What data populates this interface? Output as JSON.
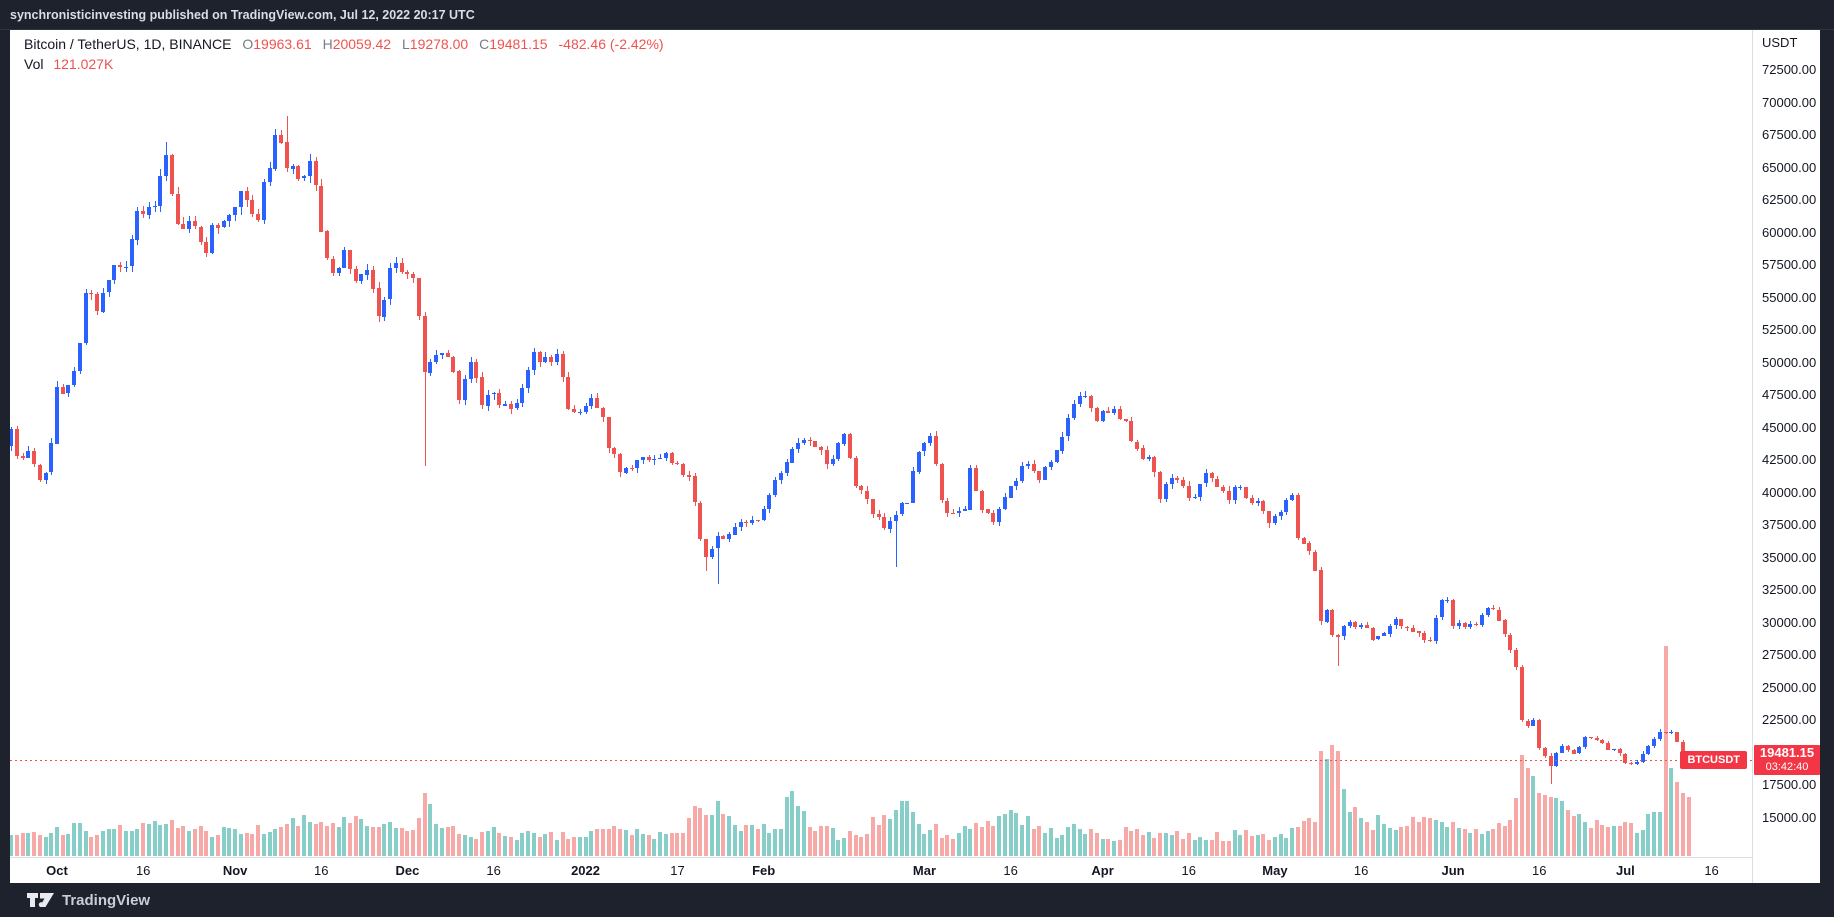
{
  "banner": {
    "text": "synchronisticinvesting published on TradingView.com, Jul 12, 2022 20:17 UTC"
  },
  "legend": {
    "title": "Bitcoin / TetherUS, 1D, BINANCE",
    "o_key": "O",
    "o_val": "19963.61",
    "h_key": "H",
    "h_val": "20059.42",
    "l_key": "L",
    "l_val": "19278.00",
    "c_key": "C",
    "c_val": "19481.15",
    "change": "-482.46 (-2.42%)",
    "vol_key": "Vol",
    "vol_val": "121.027K"
  },
  "price_scale": {
    "currency": "USDT",
    "min": 15000,
    "max": 72500,
    "step": 2500,
    "ticks": [
      "72500.00",
      "70000.00",
      "67500.00",
      "65000.00",
      "62500.00",
      "60000.00",
      "57500.00",
      "55000.00",
      "52500.00",
      "50000.00",
      "47500.00",
      "45000.00",
      "42500.00",
      "40000.00",
      "37500.00",
      "35000.00",
      "32500.00",
      "30000.00",
      "27500.00",
      "25000.00",
      "22500.00",
      "20000.00",
      "17500.00",
      "15000.00"
    ]
  },
  "time_scale": {
    "labels": [
      {
        "text": "Oct",
        "date": "2021-10-01",
        "kind": "m"
      },
      {
        "text": "16",
        "date": "2021-10-16",
        "kind": "d"
      },
      {
        "text": "Nov",
        "date": "2021-11-01",
        "kind": "m"
      },
      {
        "text": "16",
        "date": "2021-11-16",
        "kind": "d"
      },
      {
        "text": "Dec",
        "date": "2021-12-01",
        "kind": "m"
      },
      {
        "text": "16",
        "date": "2021-12-16",
        "kind": "d"
      },
      {
        "text": "2022",
        "date": "2022-01-01",
        "kind": "y"
      },
      {
        "text": "17",
        "date": "2022-01-17",
        "kind": "d"
      },
      {
        "text": "Feb",
        "date": "2022-02-01",
        "kind": "m"
      },
      {
        "text": "Mar",
        "date": "2022-03-01",
        "kind": "m"
      },
      {
        "text": "16",
        "date": "2022-03-16",
        "kind": "d"
      },
      {
        "text": "Apr",
        "date": "2022-04-01",
        "kind": "m"
      },
      {
        "text": "16",
        "date": "2022-04-16",
        "kind": "d"
      },
      {
        "text": "May",
        "date": "2022-05-01",
        "kind": "m"
      },
      {
        "text": "16",
        "date": "2022-05-16",
        "kind": "d"
      },
      {
        "text": "Jun",
        "date": "2022-06-01",
        "kind": "m"
      },
      {
        "text": "16",
        "date": "2022-06-16",
        "kind": "d"
      },
      {
        "text": "Jul",
        "date": "2022-07-01",
        "kind": "m"
      },
      {
        "text": "16",
        "date": "2022-07-16",
        "kind": "d"
      }
    ]
  },
  "price_tag": {
    "symbol": "BTCUSDT",
    "price": "19481.15",
    "countdown": "03:42:40",
    "value": 19481.15
  },
  "footer": {
    "brand": "TradingView"
  },
  "colors": {
    "up": "#2962ff",
    "down": "#ef5350",
    "vol_up": "rgba(38,166,154,0.55)",
    "vol_down": "rgba(239,83,80,0.50)",
    "line": "#ef5350",
    "tag_bg": "#f23645"
  },
  "chart_data": {
    "type": "candlestick",
    "symbol": "BTCUSDT",
    "exchange": "BINANCE",
    "interval": "1D",
    "start": "2021-09-21",
    "end": "2022-07-12",
    "y_range": [
      15000,
      72500
    ],
    "grid": false,
    "price_line": 19481.15,
    "anchors": [
      [
        "2021-09-21",
        40720
      ],
      [
        "2021-09-22",
        43560
      ],
      [
        "2021-09-23",
        44870
      ],
      [
        "2021-09-24",
        42810
      ],
      [
        "2021-09-25",
        42680
      ],
      [
        "2021-09-26",
        43180
      ],
      [
        "2021-09-27",
        42150
      ],
      [
        "2021-09-28",
        41030
      ],
      [
        "2021-09-29",
        41550
      ],
      [
        "2021-09-30",
        43790
      ],
      [
        "2021-10-01",
        48150
      ],
      [
        "2021-10-03",
        48250
      ],
      [
        "2021-10-05",
        51500
      ],
      [
        "2021-10-06",
        55340
      ],
      [
        "2021-10-08",
        53950
      ],
      [
        "2021-10-11",
        57480
      ],
      [
        "2021-10-13",
        57370
      ],
      [
        "2021-10-15",
        61670
      ],
      [
        "2021-10-18",
        62030
      ],
      [
        "2021-10-20",
        65990
      ],
      [
        "2021-10-22",
        60690
      ],
      [
        "2021-10-24",
        60860
      ],
      [
        "2021-10-27",
        58460
      ],
      [
        "2021-10-28",
        60580
      ],
      [
        "2021-10-31",
        61320
      ],
      [
        "2021-11-02",
        63230
      ],
      [
        "2021-11-05",
        60960
      ],
      [
        "2021-11-08",
        67530
      ],
      [
        "2021-11-09",
        66940
      ],
      [
        "2021-11-10",
        64940
      ],
      [
        "2021-11-12",
        64160
      ],
      [
        "2021-11-14",
        65470
      ],
      [
        "2021-11-15",
        63610
      ],
      [
        "2021-11-16",
        60090
      ],
      [
        "2021-11-18",
        56890
      ],
      [
        "2021-11-20",
        58680
      ],
      [
        "2021-11-22",
        56270
      ],
      [
        "2021-11-24",
        57160
      ],
      [
        "2021-11-26",
        53560
      ],
      [
        "2021-11-28",
        57270
      ],
      [
        "2021-11-30",
        56950
      ],
      [
        "2021-12-02",
        56480
      ],
      [
        "2021-12-03",
        53590
      ],
      [
        "2021-12-04",
        49250
      ],
      [
        "2021-12-06",
        50580
      ],
      [
        "2021-12-08",
        50470
      ],
      [
        "2021-12-10",
        47130
      ],
      [
        "2021-12-12",
        50070
      ],
      [
        "2021-12-14",
        46680
      ],
      [
        "2021-12-16",
        47640
      ],
      [
        "2021-12-18",
        46860
      ],
      [
        "2021-12-20",
        46880
      ],
      [
        "2021-12-23",
        50830
      ],
      [
        "2021-12-25",
        50400
      ],
      [
        "2021-12-27",
        50670
      ],
      [
        "2021-12-29",
        46450
      ],
      [
        "2021-12-31",
        46210
      ],
      [
        "2022-01-02",
        47290
      ],
      [
        "2022-01-04",
        45830
      ],
      [
        "2022-01-05",
        43420
      ],
      [
        "2022-01-07",
        41560
      ],
      [
        "2022-01-09",
        41880
      ],
      [
        "2022-01-11",
        42740
      ],
      [
        "2022-01-13",
        42590
      ],
      [
        "2022-01-15",
        43080
      ],
      [
        "2022-01-17",
        42240
      ],
      [
        "2022-01-19",
        41260
      ],
      [
        "2022-01-21",
        36440
      ],
      [
        "2022-01-22",
        35060
      ],
      [
        "2022-01-24",
        36660
      ],
      [
        "2022-01-26",
        36810
      ],
      [
        "2022-01-28",
        37750
      ],
      [
        "2022-01-30",
        37910
      ],
      [
        "2022-02-01",
        38720
      ],
      [
        "2022-02-04",
        41500
      ],
      [
        "2022-02-07",
        43840
      ],
      [
        "2022-02-08",
        44040
      ],
      [
        "2022-02-10",
        43520
      ],
      [
        "2022-02-12",
        42230
      ],
      [
        "2022-02-15",
        44540
      ],
      [
        "2022-02-17",
        40510
      ],
      [
        "2022-02-20",
        38380
      ],
      [
        "2022-02-22",
        37230
      ],
      [
        "2022-02-24",
        38330
      ],
      [
        "2022-02-26",
        39230
      ],
      [
        "2022-02-28",
        43160
      ],
      [
        "2022-03-02",
        44350
      ],
      [
        "2022-03-04",
        39390
      ],
      [
        "2022-03-06",
        38410
      ],
      [
        "2022-03-08",
        38720
      ],
      [
        "2022-03-09",
        41930
      ],
      [
        "2022-03-11",
        38730
      ],
      [
        "2022-03-13",
        37780
      ],
      [
        "2022-03-15",
        39660
      ],
      [
        "2022-03-17",
        40940
      ],
      [
        "2022-03-19",
        42230
      ],
      [
        "2022-03-21",
        41010
      ],
      [
        "2022-03-23",
        42360
      ],
      [
        "2022-03-25",
        44300
      ],
      [
        "2022-03-27",
        46820
      ],
      [
        "2022-03-29",
        47460
      ],
      [
        "2022-03-31",
        45530
      ],
      [
        "2022-04-01",
        46280
      ],
      [
        "2022-04-03",
        46440
      ],
      [
        "2022-04-05",
        45490
      ],
      [
        "2022-04-07",
        43440
      ],
      [
        "2022-04-09",
        42760
      ],
      [
        "2022-04-11",
        39520
      ],
      [
        "2022-04-13",
        41140
      ],
      [
        "2022-04-15",
        40540
      ],
      [
        "2022-04-17",
        39690
      ],
      [
        "2022-04-19",
        41490
      ],
      [
        "2022-04-21",
        40470
      ],
      [
        "2022-04-23",
        39440
      ],
      [
        "2022-04-25",
        40430
      ],
      [
        "2022-04-27",
        39240
      ],
      [
        "2022-04-29",
        38590
      ],
      [
        "2022-04-30",
        37640
      ],
      [
        "2022-05-02",
        38510
      ],
      [
        "2022-05-04",
        39850
      ],
      [
        "2022-05-05",
        36540
      ],
      [
        "2022-05-07",
        35460
      ],
      [
        "2022-05-08",
        34030
      ],
      [
        "2022-05-09",
        30090
      ],
      [
        "2022-05-10",
        31010
      ],
      [
        "2022-05-11",
        29090
      ],
      [
        "2022-05-12",
        28950
      ],
      [
        "2022-05-14",
        30070
      ],
      [
        "2022-05-16",
        29850
      ],
      [
        "2022-05-18",
        28710
      ],
      [
        "2022-05-20",
        29190
      ],
      [
        "2022-05-22",
        30280
      ],
      [
        "2022-05-24",
        29640
      ],
      [
        "2022-05-26",
        29190
      ],
      [
        "2022-05-28",
        28590
      ],
      [
        "2022-05-30",
        31720
      ],
      [
        "2022-05-31",
        31780
      ],
      [
        "2022-06-01",
        29790
      ],
      [
        "2022-06-03",
        29680
      ],
      [
        "2022-06-05",
        29850
      ],
      [
        "2022-06-07",
        31140
      ],
      [
        "2022-06-09",
        30190
      ],
      [
        "2022-06-10",
        29080
      ],
      [
        "2022-06-12",
        26590
      ],
      [
        "2022-06-13",
        22480
      ],
      [
        "2022-06-14",
        22120
      ],
      [
        "2022-06-15",
        22560
      ],
      [
        "2022-06-16",
        20370
      ],
      [
        "2022-06-18",
        18990
      ],
      [
        "2022-06-20",
        20560
      ],
      [
        "2022-06-22",
        19960
      ],
      [
        "2022-06-24",
        21220
      ],
      [
        "2022-06-26",
        21020
      ],
      [
        "2022-06-28",
        20270
      ],
      [
        "2022-06-30",
        19930
      ],
      [
        "2022-07-01",
        19240
      ],
      [
        "2022-07-03",
        19310
      ],
      [
        "2022-07-05",
        20540
      ],
      [
        "2022-07-07",
        21620
      ],
      [
        "2022-07-08",
        21580
      ],
      [
        "2022-07-09",
        21590
      ],
      [
        "2022-07-10",
        20850
      ],
      [
        "2022-07-11",
        19950
      ],
      [
        "2022-07-12",
        19481.15
      ]
    ],
    "wick_events": [
      {
        "date": "2021-10-20",
        "high": 67000
      },
      {
        "date": "2021-11-10",
        "high": 69000
      },
      {
        "date": "2021-12-04",
        "low": 42000
      },
      {
        "date": "2022-01-22",
        "low": 34000
      },
      {
        "date": "2022-01-24",
        "low": 32950
      },
      {
        "date": "2022-02-24",
        "low": 34320
      },
      {
        "date": "2022-05-12",
        "low": 26700
      },
      {
        "date": "2022-06-18",
        "low": 17600
      }
    ],
    "last_candle": {
      "o": 19963.61,
      "h": 20059.42,
      "l": 19278.0,
      "c": 19481.15,
      "vol": "121.027K"
    },
    "volume_anchors": [
      [
        "2021-09-21",
        0.13
      ],
      [
        "2021-09-26",
        0.11
      ],
      [
        "2021-10-01",
        0.14
      ],
      [
        "2021-10-06",
        0.12
      ],
      [
        "2021-10-11",
        0.13
      ],
      [
        "2021-10-15",
        0.13
      ],
      [
        "2021-10-20",
        0.15
      ],
      [
        "2021-10-27",
        0.12
      ],
      [
        "2021-11-03",
        0.11
      ],
      [
        "2021-11-08",
        0.13
      ],
      [
        "2021-11-10",
        0.15
      ],
      [
        "2021-11-16",
        0.16
      ],
      [
        "2021-11-26",
        0.14
      ],
      [
        "2021-12-01",
        0.12
      ],
      [
        "2021-12-03",
        0.18
      ],
      [
        "2021-12-04",
        0.3
      ],
      [
        "2021-12-06",
        0.15
      ],
      [
        "2021-12-11",
        0.1
      ],
      [
        "2021-12-17",
        0.11
      ],
      [
        "2021-12-24",
        0.09
      ],
      [
        "2021-12-31",
        0.09
      ],
      [
        "2022-01-05",
        0.13
      ],
      [
        "2022-01-12",
        0.1
      ],
      [
        "2022-01-18",
        0.11
      ],
      [
        "2022-01-21",
        0.23
      ],
      [
        "2022-01-24",
        0.26
      ],
      [
        "2022-01-28",
        0.12
      ],
      [
        "2022-02-04",
        0.13
      ],
      [
        "2022-02-05",
        0.28
      ],
      [
        "2022-02-10",
        0.12
      ],
      [
        "2022-02-17",
        0.1
      ],
      [
        "2022-02-24",
        0.22
      ],
      [
        "2022-02-25",
        0.26
      ],
      [
        "2022-02-28",
        0.15
      ],
      [
        "2022-03-05",
        0.1
      ],
      [
        "2022-03-09",
        0.13
      ],
      [
        "2022-03-16",
        0.22
      ],
      [
        "2022-03-22",
        0.11
      ],
      [
        "2022-03-28",
        0.13
      ],
      [
        "2022-04-02",
        0.08
      ],
      [
        "2022-04-06",
        0.12
      ],
      [
        "2022-04-11",
        0.11
      ],
      [
        "2022-04-18",
        0.09
      ],
      [
        "2022-04-25",
        0.1
      ],
      [
        "2022-05-01",
        0.09
      ],
      [
        "2022-05-05",
        0.14
      ],
      [
        "2022-05-08",
        0.16
      ],
      [
        "2022-05-09",
        0.5
      ],
      [
        "2022-05-10",
        0.46
      ],
      [
        "2022-05-11",
        0.53
      ],
      [
        "2022-05-12",
        0.5
      ],
      [
        "2022-05-13",
        0.32
      ],
      [
        "2022-05-16",
        0.18
      ],
      [
        "2022-05-20",
        0.15
      ],
      [
        "2022-05-26",
        0.16
      ],
      [
        "2022-05-31",
        0.14
      ],
      [
        "2022-06-04",
        0.11
      ],
      [
        "2022-06-08",
        0.13
      ],
      [
        "2022-06-11",
        0.17
      ],
      [
        "2022-06-13",
        0.48
      ],
      [
        "2022-06-14",
        0.42
      ],
      [
        "2022-06-15",
        0.38
      ],
      [
        "2022-06-16",
        0.3
      ],
      [
        "2022-06-18",
        0.28
      ],
      [
        "2022-06-21",
        0.22
      ],
      [
        "2022-06-24",
        0.16
      ],
      [
        "2022-06-28",
        0.14
      ],
      [
        "2022-07-01",
        0.16
      ],
      [
        "2022-07-03",
        0.11
      ],
      [
        "2022-07-05",
        0.2
      ],
      [
        "2022-07-07",
        0.21
      ],
      [
        "2022-07-08",
        1.0
      ],
      [
        "2022-07-09",
        0.42
      ],
      [
        "2022-07-10",
        0.35
      ],
      [
        "2022-07-11",
        0.3
      ],
      [
        "2022-07-12",
        0.28
      ]
    ]
  }
}
